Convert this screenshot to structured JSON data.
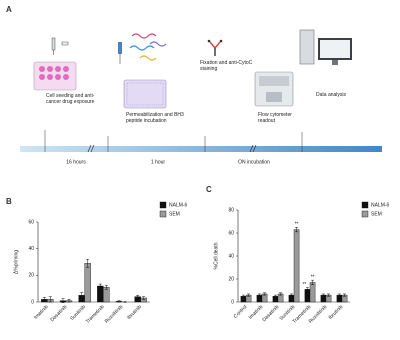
{
  "panel_a": {
    "label": "A",
    "steps": [
      "Cell seeding and anti-cancer drug exposure",
      "Permeabilization and BH3 peptide incubation",
      "Fixation and anti-CytoC staining",
      "Flow cytometer readout",
      "Data analysis"
    ],
    "timeline": [
      "16 hours",
      "1 hour",
      "ON incubation"
    ]
  },
  "chart_data": [
    {
      "type": "bar",
      "panel": "B",
      "ylabel": "Δ%priming",
      "categories": [
        "Imatinib",
        "Dasatinib",
        "Sunitinib",
        "Trametinib",
        "Ruxolitinib",
        "Ibrutinib"
      ],
      "series": [
        {
          "name": "NALM-6",
          "color": "#111111",
          "values": [
            2,
            1,
            5,
            12,
            0.5,
            4
          ],
          "errors": [
            1.5,
            1.5,
            2,
            1.5,
            0.5,
            1
          ]
        },
        {
          "name": "SEM",
          "color": "#9a9a9a",
          "values": [
            2,
            1,
            29,
            11,
            0,
            3
          ],
          "errors": [
            2,
            1,
            3,
            1.5,
            0.3,
            1
          ]
        }
      ],
      "ylim": [
        0,
        60
      ],
      "yticks": [
        0,
        20,
        40,
        60
      ]
    },
    {
      "type": "bar",
      "panel": "C",
      "ylabel": "%Cell death",
      "categories": [
        "Control",
        "Imatinib",
        "Dasatinib",
        "Sunitinib",
        "Trametinib",
        "Ruxolitinib",
        "Ibrutinib"
      ],
      "series": [
        {
          "name": "NALM-6",
          "color": "#111111",
          "values": [
            5,
            6,
            5,
            6,
            11,
            6,
            6
          ],
          "errors": [
            1,
            1,
            1,
            1,
            1.5,
            1,
            1
          ]
        },
        {
          "name": "SEM",
          "color": "#9a9a9a",
          "values": [
            6,
            7,
            7,
            63,
            17,
            6,
            6
          ],
          "errors": [
            1,
            1,
            1,
            2,
            2,
            1,
            1
          ]
        }
      ],
      "ylim": [
        0,
        80
      ],
      "yticks": [
        0,
        20,
        40,
        60,
        80
      ],
      "annotations": [
        "**",
        "**",
        "**"
      ]
    }
  ]
}
